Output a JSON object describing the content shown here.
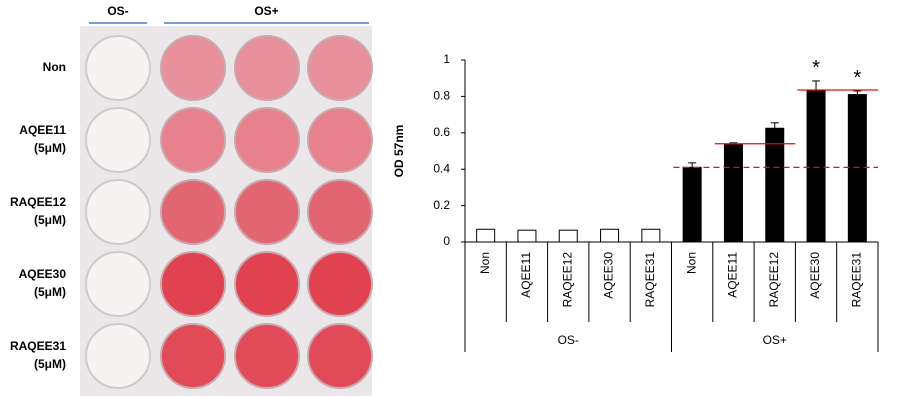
{
  "plate": {
    "column_groups": [
      {
        "name": "OS-",
        "size": 1
      },
      {
        "name": "OS+",
        "size": 3
      }
    ],
    "rows": [
      [
        "Non"
      ],
      [
        "AQEE11",
        "(5μM)"
      ],
      [
        "RAQEE12",
        "(5μM)"
      ],
      [
        "AQEE30",
        "(5μM)"
      ],
      [
        "RAQEE31",
        "(5μM)"
      ]
    ]
  },
  "chart_data": {
    "type": "bar",
    "y_label": "OD 57nm",
    "categories": [
      "Non",
      "AQEE11",
      "RAQEE12",
      "AQEE30",
      "RAQEE31",
      "Non",
      "AQEE11",
      "RAQEE12",
      "AQEE30",
      "RAQEE31"
    ],
    "values": [
      0.07,
      0.065,
      0.065,
      0.07,
      0.07,
      0.41,
      0.535,
      0.625,
      0.835,
      0.81
    ],
    "errors": [
      null,
      null,
      null,
      null,
      null,
      0.025,
      0.01,
      0.03,
      0.05,
      0.02
    ],
    "colors": [
      "#ffffff",
      "#ffffff",
      "#ffffff",
      "#ffffff",
      "#ffffff",
      "#000000",
      "#000000",
      "#000000",
      "#000000",
      "#000000"
    ],
    "groups": [
      {
        "name": "OS-",
        "size": 5
      },
      {
        "name": "OS+",
        "size": 5
      }
    ],
    "annotations": [
      {
        "text": "*",
        "index": 8
      },
      {
        "text": "*",
        "index": 9
      }
    ],
    "reference_lines": [
      {
        "value": 0.41,
        "dashed": true,
        "span": [
          5,
          9
        ]
      },
      {
        "value": 0.54,
        "dashed": false,
        "span": [
          6,
          7
        ]
      },
      {
        "value": 0.835,
        "dashed": false,
        "span": [
          8,
          9
        ]
      }
    ],
    "ylim": [
      0,
      1
    ],
    "yticks": [
      0,
      0.2,
      0.4,
      0.6,
      0.8,
      1
    ]
  }
}
